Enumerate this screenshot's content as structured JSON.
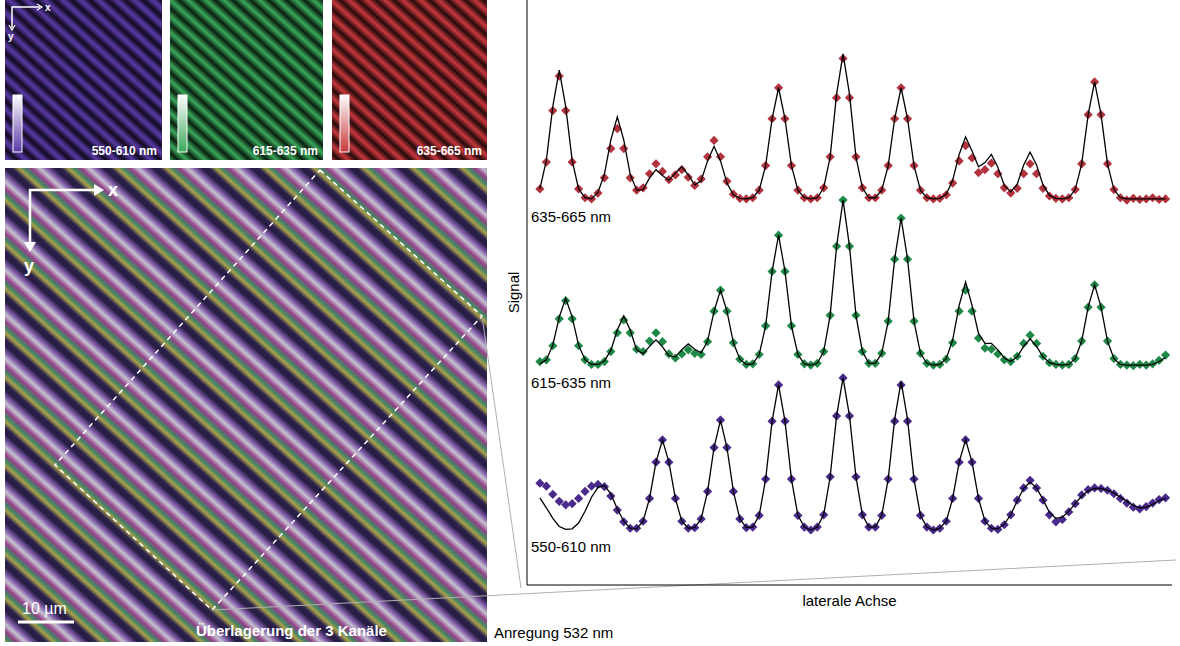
{
  "chart_data": {
    "type": "line",
    "x_label": "laterale Achse",
    "y_label": "Signal",
    "x": [
      2,
      3,
      4,
      5,
      6,
      7,
      8,
      9,
      10,
      11,
      12,
      13,
      14,
      15,
      16,
      17,
      18,
      19,
      20,
      21,
      22,
      23,
      24,
      25,
      26,
      27,
      28,
      29,
      30,
      31,
      32,
      33,
      34,
      35,
      36,
      37,
      38,
      39,
      40,
      41,
      42,
      43,
      44,
      45,
      46,
      47,
      48,
      49,
      50,
      51,
      52,
      53,
      54,
      55,
      56,
      57,
      58,
      59,
      60,
      61,
      62,
      63,
      64,
      65,
      66,
      67,
      68,
      69,
      70,
      71,
      72,
      73,
      74,
      75,
      76,
      77,
      78,
      79,
      80,
      81,
      82,
      83,
      84,
      85,
      86,
      87,
      88,
      89,
      90,
      91,
      92,
      93,
      94,
      95,
      96,
      97,
      98,
      99
    ],
    "xlim": [
      0,
      100
    ],
    "ylim": [
      0,
      100
    ],
    "tick_labels": false,
    "grid": false,
    "series": [
      {
        "name": "635-665 nm",
        "type": "scatter",
        "marker": "diamond",
        "color": "#b2323e",
        "values": [
          67.7,
          72.3,
          81.1,
          87.0,
          81.1,
          72.3,
          67.7,
          66.2,
          66.0,
          67.0,
          69.6,
          74.6,
          78.0,
          74.6,
          69.6,
          67.5,
          67.9,
          70.3,
          72.0,
          70.7,
          69.3,
          70.1,
          71.0,
          69.7,
          68.3,
          69.4,
          73.2,
          76.0,
          73.2,
          69.0,
          66.8,
          66.1,
          66.0,
          66.2,
          67.5,
          71.7,
          79.7,
          85.0,
          79.7,
          71.7,
          67.5,
          66.2,
          66.0,
          66.2,
          67.9,
          73.2,
          83.3,
          90.0,
          83.3,
          73.2,
          67.9,
          66.2,
          66.2,
          67.5,
          71.7,
          79.7,
          85.0,
          79.7,
          71.7,
          67.5,
          66.2,
          66.0,
          66.1,
          66.7,
          68.7,
          72.5,
          75.1,
          73.0,
          70.5,
          71.0,
          72.1,
          70.3,
          67.9,
          67.0,
          67.8,
          70.3,
          72.0,
          70.3,
          67.8,
          66.5,
          66.1,
          66.0,
          66.2,
          67.6,
          72.0,
          80.4,
          86.0,
          80.4,
          72.0,
          67.6,
          66.2,
          65.8,
          66.1,
          65.9,
          66.0,
          66.2,
          65.9,
          66.0
        ]
      },
      {
        "type": "line",
        "line_style": "solid",
        "color": "#000000",
        "values": [
          67.7,
          72.6,
          81.8,
          88.0,
          81.8,
          72.6,
          67.7,
          66.2,
          66.0,
          67.1,
          70.2,
          76.1,
          80.0,
          76.1,
          70.2,
          67.5,
          67.6,
          69.6,
          71.0,
          70.0,
          69.2,
          70.4,
          71.5,
          70.1,
          68.4,
          69.1,
          72.5,
          75.0,
          72.5,
          68.7,
          66.7,
          66.1,
          66.0,
          66.2,
          67.5,
          71.7,
          79.7,
          85.0,
          79.7,
          71.7,
          67.5,
          66.2,
          66.0,
          66.2,
          67.9,
          73.2,
          83.9,
          90.8,
          83.9,
          73.2,
          67.9,
          66.2,
          66.2,
          67.5,
          71.7,
          79.7,
          85.0,
          79.7,
          71.7,
          67.5,
          66.2,
          66.0,
          66.1,
          66.8,
          69.2,
          73.6,
          76.6,
          74.2,
          71.5,
          72.2,
          73.6,
          71.4,
          68.3,
          67.2,
          68.5,
          71.8,
          74.0,
          71.8,
          68.4,
          66.6,
          66.1,
          66.0,
          66.2,
          67.6,
          72.0,
          80.4,
          86.0,
          80.4,
          72.0,
          67.6,
          66.2,
          66.0,
          66.0,
          66.0,
          66.0,
          66.0,
          66.0,
          66.0
        ]
      },
      {
        "name": "615-635 nm",
        "type": "scatter",
        "marker": "diamond",
        "color": "#1f8a47",
        "values": [
          38.2,
          38.5,
          40.9,
          45.5,
          48.6,
          45.5,
          40.9,
          38.5,
          37.7,
          37.7,
          38.2,
          39.9,
          43.1,
          45.3,
          43.1,
          40.3,
          39.9,
          41.7,
          43.1,
          41.6,
          39.5,
          38.8,
          39.5,
          40.2,
          39.6,
          39.4,
          41.6,
          46.8,
          50.4,
          46.8,
          41.4,
          38.6,
          37.7,
          37.8,
          39.4,
          44.3,
          53.6,
          59.8,
          53.6,
          44.3,
          39.4,
          37.8,
          37.6,
          37.9,
          39.9,
          46.1,
          57.9,
          65.8,
          57.9,
          46.1,
          39.9,
          37.9,
          37.9,
          39.6,
          45.1,
          55.7,
          62.7,
          55.7,
          45.1,
          39.6,
          37.9,
          37.6,
          37.7,
          38.6,
          41.4,
          46.8,
          50.4,
          46.8,
          42.2,
          40.5,
          40.3,
          39.5,
          38.5,
          38.2,
          39.1,
          41.3,
          42.7,
          41.3,
          39.1,
          38.0,
          37.7,
          37.6,
          37.7,
          38.7,
          41.7,
          47.5,
          51.3,
          47.5,
          41.7,
          38.7,
          37.7,
          37.6,
          37.5,
          37.7,
          37.6,
          37.8,
          38.4,
          39.3
        ]
      },
      {
        "type": "line",
        "line_style": "solid",
        "color": "#000000",
        "values": [
          37.8,
          38.5,
          41.0,
          45.8,
          49.0,
          45.8,
          41.0,
          38.5,
          37.7,
          37.7,
          38.3,
          40.1,
          43.6,
          46.0,
          43.6,
          40.2,
          39.5,
          40.8,
          41.9,
          40.7,
          39.2,
          39.0,
          40.2,
          41.2,
          40.3,
          39.7,
          41.7,
          46.8,
          50.4,
          46.8,
          41.4,
          38.6,
          37.7,
          37.8,
          39.4,
          44.3,
          53.6,
          59.8,
          53.6,
          44.3,
          39.4,
          37.8,
          37.6,
          37.9,
          39.9,
          46.1,
          57.9,
          65.8,
          57.9,
          46.1,
          39.9,
          37.9,
          37.9,
          39.6,
          45.1,
          55.7,
          62.7,
          55.7,
          45.1,
          39.6,
          37.9,
          37.6,
          37.7,
          38.7,
          41.9,
          47.8,
          51.8,
          47.8,
          43.0,
          41.3,
          41.3,
          40.2,
          38.8,
          38.2,
          39.0,
          40.8,
          42.1,
          40.8,
          39.0,
          38.0,
          37.7,
          37.6,
          37.7,
          38.7,
          41.7,
          47.5,
          51.3,
          47.5,
          41.7,
          38.7,
          37.7,
          37.6,
          37.6,
          37.6,
          37.6,
          37.7,
          38.2,
          38.9
        ]
      },
      {
        "name": "550-610 nm",
        "type": "scatter",
        "marker": "diamond",
        "color": "#4b2a8e",
        "values": [
          17.4,
          16.9,
          15.5,
          14.3,
          13.7,
          13.9,
          14.8,
          16.0,
          16.9,
          17.2,
          16.8,
          15.2,
          12.8,
          10.8,
          9.7,
          9.7,
          10.9,
          14.8,
          21.0,
          24.8,
          21.0,
          14.8,
          10.9,
          9.7,
          9.8,
          11.3,
          16.0,
          23.5,
          28.2,
          23.5,
          16.0,
          11.3,
          9.8,
          9.9,
          11.9,
          18.1,
          28.0,
          34.2,
          28.0,
          18.1,
          11.9,
          9.9,
          9.4,
          9.9,
          12.0,
          18.5,
          28.9,
          35.4,
          28.9,
          18.5,
          12.0,
          9.9,
          9.9,
          11.9,
          18.1,
          28.0,
          34.2,
          28.0,
          18.1,
          11.9,
          9.9,
          9.4,
          9.7,
          10.9,
          14.8,
          21.0,
          24.8,
          21.0,
          14.8,
          10.9,
          9.7,
          9.5,
          10.3,
          12.0,
          14.5,
          16.6,
          17.9,
          16.6,
          14.5,
          12.0,
          10.8,
          11.2,
          12.5,
          13.9,
          15.4,
          16.3,
          16.6,
          16.5,
          16.2,
          15.6,
          14.8,
          14.0,
          13.3,
          13.0,
          13.4,
          14.0,
          14.6,
          14.9
        ]
      },
      {
        "type": "line",
        "line_style": "solid",
        "color": "#000000",
        "values": [
          14.9,
          13.2,
          11.4,
          10.0,
          9.5,
          9.6,
          10.6,
          12.6,
          15.0,
          16.7,
          17.0,
          15.6,
          13.0,
          10.9,
          9.7,
          9.6,
          10.9,
          14.8,
          21.0,
          24.8,
          21.0,
          14.8,
          10.9,
          9.7,
          9.8,
          11.3,
          16.0,
          23.5,
          28.2,
          23.5,
          16.0,
          11.3,
          9.8,
          9.9,
          11.9,
          18.1,
          28.0,
          34.2,
          28.0,
          18.1,
          11.9,
          9.9,
          9.4,
          9.9,
          12.0,
          18.5,
          28.9,
          35.4,
          28.9,
          18.5,
          12.0,
          9.9,
          9.9,
          11.9,
          18.1,
          28.3,
          34.8,
          28.3,
          18.1,
          11.9,
          9.9,
          9.4,
          9.7,
          10.9,
          14.8,
          21.0,
          24.8,
          21.0,
          14.8,
          10.9,
          9.7,
          9.6,
          10.4,
          12.0,
          14.4,
          16.5,
          17.6,
          16.6,
          14.6,
          12.4,
          11.4,
          11.6,
          12.6,
          13.9,
          15.2,
          16.1,
          16.5,
          16.5,
          16.2,
          15.7,
          15.0,
          14.3,
          13.6,
          13.2,
          13.3,
          13.8,
          14.4,
          14.8
        ]
      }
    ]
  },
  "images": {
    "channels": [
      {
        "label": "550-610 nm",
        "color": "#5a3aa6"
      },
      {
        "label": "615-635 nm",
        "color": "#3aa85a"
      },
      {
        "label": "635-665 nm",
        "color": "#c8383c"
      }
    ],
    "overlay_label": "Überlagerung der 3 Kanäle",
    "excitation": "Anregung 532 nm",
    "scale_bar": "10 µm",
    "axis_x": "x",
    "axis_y": "y"
  }
}
